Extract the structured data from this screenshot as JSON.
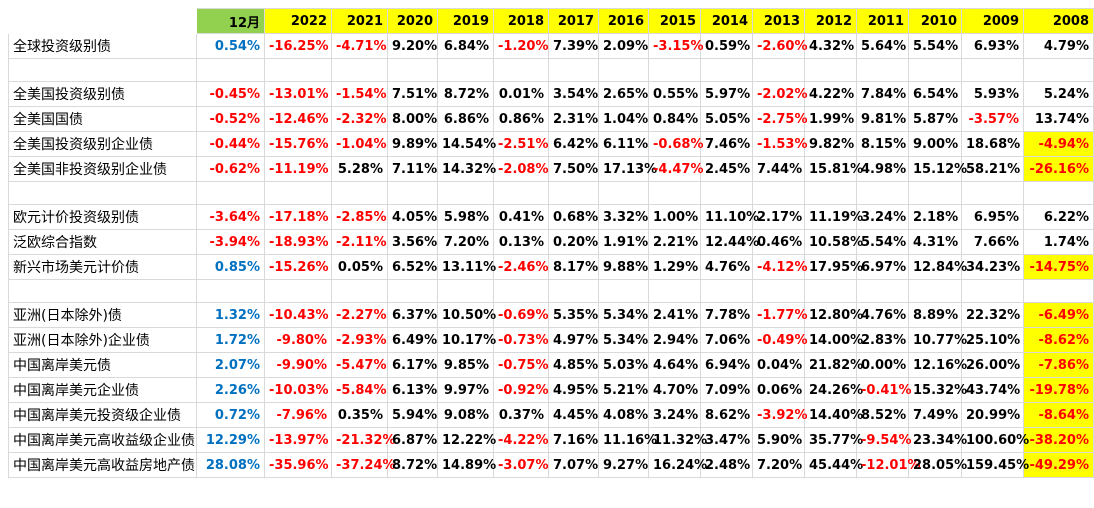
{
  "header": {
    "label": "",
    "columns": [
      "12月",
      "2022",
      "2021",
      "2020",
      "2019",
      "2018",
      "2017",
      "2016",
      "2015",
      "2014",
      "2013",
      "2012",
      "2011",
      "2010",
      "2009",
      "2008"
    ]
  },
  "rows": [
    {
      "type": "data",
      "label": "全球投资级别债",
      "values": [
        "0.54%",
        "-16.25%",
        "-4.71%",
        "9.20%",
        "6.84%",
        "-1.20%",
        "7.39%",
        "2.09%",
        "-3.15%",
        "0.59%",
        "-2.60%",
        "4.32%",
        "5.64%",
        "5.54%",
        "6.93%",
        "4.79%"
      ]
    },
    {
      "type": "spacer"
    },
    {
      "type": "data",
      "label": "全美国投资级别债",
      "values": [
        "-0.45%",
        "-13.01%",
        "-1.54%",
        "7.51%",
        "8.72%",
        "0.01%",
        "3.54%",
        "2.65%",
        "0.55%",
        "5.97%",
        "-2.02%",
        "4.22%",
        "7.84%",
        "6.54%",
        "5.93%",
        "5.24%"
      ]
    },
    {
      "type": "data",
      "label": "全美国国债",
      "values": [
        "-0.52%",
        "-12.46%",
        "-2.32%",
        "8.00%",
        "6.86%",
        "0.86%",
        "2.31%",
        "1.04%",
        "0.84%",
        "5.05%",
        "-2.75%",
        "1.99%",
        "9.81%",
        "5.87%",
        "-3.57%",
        "13.74%"
      ]
    },
    {
      "type": "data",
      "label": "全美国投资级别企业债",
      "values": [
        "-0.44%",
        "-15.76%",
        "-1.04%",
        "9.89%",
        "14.54%",
        "-2.51%",
        "6.42%",
        "6.11%",
        "-0.68%",
        "7.46%",
        "-1.53%",
        "9.82%",
        "8.15%",
        "9.00%",
        "18.68%",
        "-4.94%"
      ],
      "highlight_last": true
    },
    {
      "type": "data",
      "label": "全美国非投资级别企业债",
      "values": [
        "-0.62%",
        "-11.19%",
        "5.28%",
        "7.11%",
        "14.32%",
        "-2.08%",
        "7.50%",
        "17.13%",
        "-4.47%",
        "2.45%",
        "7.44%",
        "15.81%",
        "4.98%",
        "15.12%",
        "58.21%",
        "-26.16%"
      ],
      "highlight_last": true
    },
    {
      "type": "spacer"
    },
    {
      "type": "data",
      "label": "欧元计价投资级别债",
      "values": [
        "-3.64%",
        "-17.18%",
        "-2.85%",
        "4.05%",
        "5.98%",
        "0.41%",
        "0.68%",
        "3.32%",
        "1.00%",
        "11.10%",
        "2.17%",
        "11.19%",
        "3.24%",
        "2.18%",
        "6.95%",
        "6.22%"
      ]
    },
    {
      "type": "data",
      "label": "泛欧综合指数",
      "values": [
        "-3.94%",
        "-18.93%",
        "-2.11%",
        "3.56%",
        "7.20%",
        "0.13%",
        "0.20%",
        "1.91%",
        "2.21%",
        "12.44%",
        "0.46%",
        "10.58%",
        "5.54%",
        "4.31%",
        "7.66%",
        "1.74%"
      ]
    },
    {
      "type": "data",
      "label": "新兴市场美元计价债",
      "values": [
        "0.85%",
        "-15.26%",
        "0.05%",
        "6.52%",
        "13.11%",
        "-2.46%",
        "8.17%",
        "9.88%",
        "1.29%",
        "4.76%",
        "-4.12%",
        "17.95%",
        "6.97%",
        "12.84%",
        "34.23%",
        "-14.75%"
      ],
      "highlight_last": true
    },
    {
      "type": "spacer"
    },
    {
      "type": "data",
      "label": "亚洲(日本除外)债",
      "values": [
        "1.32%",
        "-10.43%",
        "-2.27%",
        "6.37%",
        "10.50%",
        "-0.69%",
        "5.35%",
        "5.34%",
        "2.41%",
        "7.78%",
        "-1.77%",
        "12.80%",
        "4.76%",
        "8.89%",
        "22.32%",
        "-6.49%"
      ],
      "highlight_last": true
    },
    {
      "type": "data",
      "label": "亚洲(日本除外)企业债",
      "values": [
        "1.72%",
        "-9.80%",
        "-2.93%",
        "6.49%",
        "10.17%",
        "-0.73%",
        "4.97%",
        "5.34%",
        "2.94%",
        "7.06%",
        "-0.49%",
        "14.00%",
        "2.83%",
        "10.77%",
        "25.10%",
        "-8.62%"
      ],
      "highlight_last": true
    },
    {
      "type": "data",
      "label": "中国离岸美元债",
      "values": [
        "2.07%",
        "-9.90%",
        "-5.47%",
        "6.17%",
        "9.85%",
        "-0.75%",
        "4.85%",
        "5.03%",
        "4.64%",
        "6.94%",
        "0.04%",
        "21.82%",
        "0.00%",
        "12.16%",
        "26.00%",
        "-7.86%"
      ],
      "highlight_last": true
    },
    {
      "type": "data",
      "label": "中国离岸美元企业债",
      "values": [
        "2.26%",
        "-10.03%",
        "-5.84%",
        "6.13%",
        "9.97%",
        "-0.92%",
        "4.95%",
        "5.21%",
        "4.70%",
        "7.09%",
        "0.06%",
        "24.26%",
        "-0.41%",
        "15.32%",
        "43.74%",
        "-19.78%"
      ],
      "highlight_last": true
    },
    {
      "type": "data",
      "label": "中国离岸美元投资级企业债",
      "values": [
        "0.72%",
        "-7.96%",
        "0.35%",
        "5.94%",
        "9.08%",
        "0.37%",
        "4.45%",
        "4.08%",
        "3.24%",
        "8.62%",
        "-3.92%",
        "14.40%",
        "8.52%",
        "7.49%",
        "20.99%",
        "-8.64%"
      ],
      "highlight_last": true
    },
    {
      "type": "data",
      "label": "中国离岸美元高收益级企业债",
      "values": [
        "12.29%",
        "-13.97%",
        "-21.32%",
        "6.87%",
        "12.22%",
        "-4.22%",
        "7.16%",
        "11.16%",
        "11.32%",
        "3.47%",
        "5.90%",
        "35.77%",
        "-9.54%",
        "23.34%",
        "100.60%",
        "-38.20%"
      ],
      "highlight_last": true
    },
    {
      "type": "data",
      "label": "中国离岸美元高收益房地产债",
      "values": [
        "28.08%",
        "-35.96%",
        "-37.24%",
        "8.72%",
        "14.89%",
        "-3.07%",
        "7.07%",
        "9.27%",
        "16.24%",
        "2.48%",
        "7.20%",
        "45.44%",
        "-12.01%",
        "28.05%",
        "159.45%",
        "-49.29%"
      ],
      "highlight_last": true
    }
  ],
  "colors": {
    "header_year_bg": "#ffff00",
    "header_month_bg": "#92d050",
    "first_col_value": "#0070c0",
    "negative": "#ff0000",
    "positive": "#000000",
    "highlight_bg": "#ffff00"
  }
}
